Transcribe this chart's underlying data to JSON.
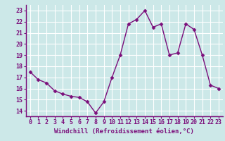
{
  "x": [
    0,
    1,
    2,
    3,
    4,
    5,
    6,
    7,
    8,
    9,
    10,
    11,
    12,
    13,
    14,
    15,
    16,
    17,
    18,
    19,
    20,
    21,
    22,
    23
  ],
  "y": [
    17.5,
    16.8,
    16.5,
    15.8,
    15.5,
    15.3,
    15.2,
    14.8,
    13.8,
    14.8,
    17.0,
    19.0,
    21.8,
    22.2,
    23.0,
    21.5,
    21.8,
    19.0,
    19.2,
    21.8,
    21.3,
    19.0,
    16.3,
    16.0
  ],
  "line_color": "#7b0e7b",
  "marker": "D",
  "marker_size": 2.5,
  "line_width": 1.0,
  "xlabel": "Windchill (Refroidissement éolien,°C)",
  "xlabel_fontsize": 6.5,
  "ylim": [
    13.5,
    23.5
  ],
  "xlim": [
    -0.5,
    23.5
  ],
  "yticks": [
    14,
    15,
    16,
    17,
    18,
    19,
    20,
    21,
    22,
    23
  ],
  "xticks": [
    0,
    1,
    2,
    3,
    4,
    5,
    6,
    7,
    8,
    9,
    10,
    11,
    12,
    13,
    14,
    15,
    16,
    17,
    18,
    19,
    20,
    21,
    22,
    23
  ],
  "background_color": "#cce8e8",
  "grid_color": "#ffffff",
  "tick_color": "#7b0e7b",
  "tick_fontsize": 6.0,
  "xlabel_color": "#7b0e7b",
  "spine_color": "#7b0e7b"
}
